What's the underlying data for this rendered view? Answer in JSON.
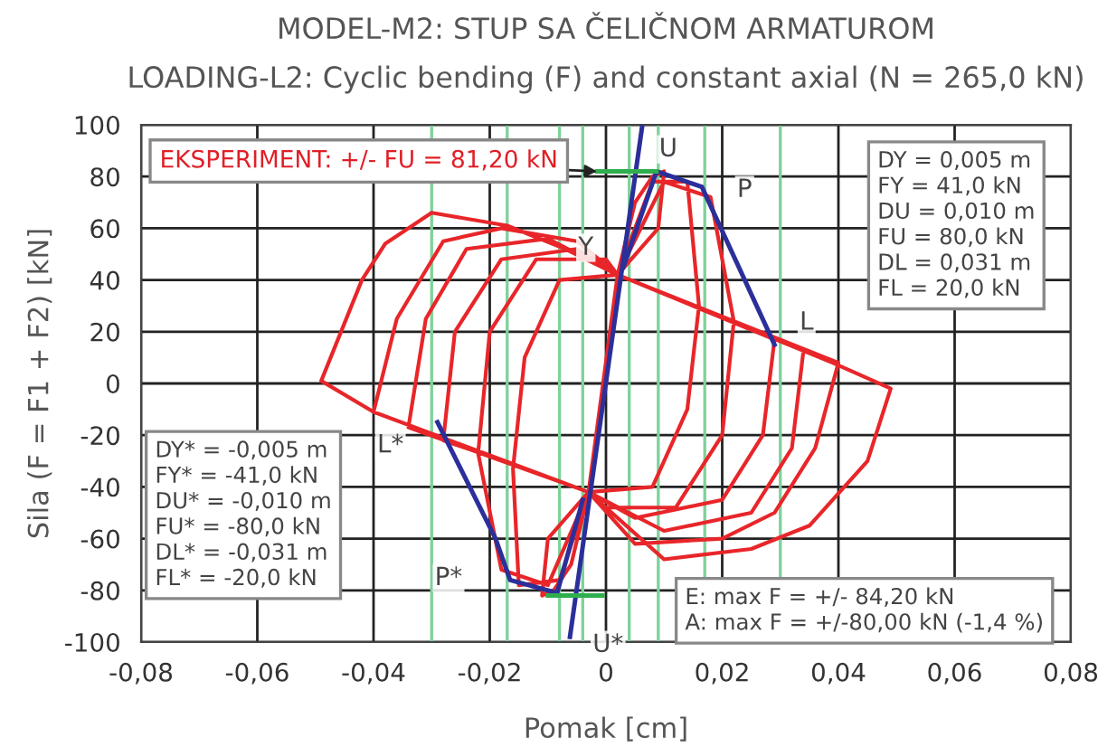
{
  "chart_data": {
    "type": "line",
    "title": "MODEL-M2: STUP SA ČELIČNOM ARMATUROM",
    "subtitle": "LOADING-L2: Cyclic bending (F) and constant axial (N = 265,0 kN)",
    "xlabel": "Pomak [cm]",
    "ylabel": "Sila (F = F1 + F2) [kN]",
    "xlim": [
      -0.08,
      0.08
    ],
    "ylim": [
      -100,
      100
    ],
    "xticks": [
      {
        "value": -0.08,
        "label": "-0,08"
      },
      {
        "value": -0.06,
        "label": "-0,06"
      },
      {
        "value": -0.04,
        "label": "-0,04"
      },
      {
        "value": -0.02,
        "label": "-0,02"
      },
      0,
      {
        "value": 0.02,
        "label": "0,02"
      },
      {
        "value": 0.04,
        "label": "0,04"
      },
      {
        "value": 0.06,
        "label": "0,06"
      },
      {
        "value": 0.08,
        "label": "0,08"
      }
    ],
    "yticks": [
      -100,
      -80,
      -60,
      -40,
      -20,
      0,
      20,
      40,
      60,
      80,
      100
    ],
    "grid": true,
    "marker": "none",
    "line_style": "solid",
    "series": [
      {
        "color": "#e8262a",
        "x": [
          0.0,
          0.002,
          0.005,
          0.008,
          0.01,
          0.009,
          0.002,
          -0.003,
          -0.006,
          -0.009,
          -0.011,
          -0.01,
          -0.003,
          0.002,
          0.008,
          0.014,
          0.016,
          0.014,
          0.008,
          -0.003,
          -0.008,
          -0.015,
          -0.016,
          -0.014,
          -0.008,
          0.002,
          0.01,
          0.018,
          0.022,
          0.02,
          0.012,
          0.0,
          -0.003,
          -0.01,
          -0.018,
          -0.022,
          -0.02,
          -0.012,
          0.0,
          0.002,
          0.015,
          0.029,
          0.027,
          0.02,
          0.005,
          -0.003,
          -0.015,
          -0.028,
          -0.026,
          -0.018,
          -0.005,
          0.002,
          0.034,
          0.032,
          0.025,
          0.01,
          -0.003,
          -0.034,
          -0.031,
          -0.024,
          -0.01,
          0.002,
          0.04,
          0.036,
          0.029,
          0.02,
          0.005,
          -0.003,
          -0.04,
          -0.036,
          -0.028,
          -0.018,
          -0.005,
          0.002,
          0.039,
          0.049,
          0.045,
          0.035,
          0.025,
          0.01,
          -0.003,
          -0.04,
          -0.049,
          -0.042,
          -0.038,
          -0.03,
          -0.017,
          -0.007,
          0.002
        ],
        "values": [
          0,
          42,
          70,
          80,
          82,
          60,
          42,
          -42,
          -70,
          -80,
          -82,
          -60,
          -42,
          42,
          78,
          78,
          30,
          -10,
          -40,
          -42,
          -76,
          -78,
          -33,
          10,
          40,
          42,
          78,
          72,
          24,
          -20,
          -48,
          -48,
          -42,
          -78,
          -72,
          -27,
          20,
          48,
          48,
          42,
          30,
          17,
          -20,
          -45,
          -52,
          -42,
          -32,
          -22,
          20,
          48,
          52,
          42,
          13,
          -25,
          -50,
          -57,
          -42,
          -17,
          25,
          52,
          56,
          42,
          8,
          -25,
          -50,
          -60,
          -62,
          -42,
          -11,
          25,
          55,
          60,
          55,
          42,
          8,
          -2,
          -30,
          -55,
          -64,
          -68,
          -42,
          -11,
          1,
          40,
          54,
          66,
          61,
          52,
          42
        ]
      },
      {
        "color": "#2b2f9a",
        "x": [
          -0.0062,
          0.0062
        ],
        "values": [
          -98,
          99
        ]
      },
      {
        "color": "#2b2f9a",
        "x": [
          0.003,
          0.0087,
          0.0165,
          0.029
        ],
        "values": [
          45,
          82,
          76,
          15
        ]
      },
      {
        "color": "#2b2f9a",
        "x": [
          -0.004,
          -0.0084,
          -0.0165,
          -0.019,
          -0.029
        ],
        "values": [
          -45,
          -81,
          -76,
          -60,
          -15
        ]
      },
      {
        "color": "#2fae4e",
        "x": [
          -0.0015,
          0.0087
        ],
        "values": [
          82,
          82
        ]
      },
      {
        "color": "#2fae4e",
        "x": [
          -0.01,
          -0.0006
        ],
        "values": [
          -82,
          -82
        ]
      }
    ],
    "ref_lines": [
      {
        "axis": "x",
        "value": -0.03,
        "color": "#7fd19a"
      },
      {
        "axis": "x",
        "value": -0.017,
        "color": "#7fd19a"
      },
      {
        "axis": "x",
        "value": -0.008,
        "color": "#7fd19a"
      },
      {
        "axis": "x",
        "value": -0.004,
        "color": "#7fd19a"
      },
      {
        "axis": "x",
        "value": 0.004,
        "color": "#7fd19a"
      },
      {
        "axis": "x",
        "value": 0.009,
        "color": "#7fd19a"
      },
      {
        "axis": "x",
        "value": 0.017,
        "color": "#7fd19a"
      },
      {
        "axis": "x",
        "value": 0.03,
        "color": "#7fd19a"
      }
    ],
    "annotations": [
      {
        "text": "EKSPERIMENT: +/- FU = 81,20 kN",
        "x": -0.0015,
        "y": 82
      },
      "DY = 0,005 m\nFY = 41,0 kN\nDU = 0,010 m\nFU = 80,0 kN\nDL = 0,031 m\nFL = 20,0 kN",
      "DY* = -0,005 m\nFY* = -41,0 kN\nDU* = -0,010 m\nFU* = -80,0 kN\nDL* = -0,031 m\nFL* = -20,0 kN",
      "E: max F = +/- 84,20 kN\nA: max F = +/-80,00 kN (-1,4 %)",
      {
        "text": "U",
        "x": 0.0087,
        "y": 82
      },
      {
        "text": "P",
        "x": 0.0165,
        "y": 76
      },
      {
        "text": "Y",
        "x": 0.003,
        "y": 42
      },
      {
        "text": "L",
        "x": 0.029,
        "y": 15
      },
      {
        "text": "L*",
        "x": -0.029,
        "y": -15
      },
      {
        "text": "P*",
        "x": -0.0165,
        "y": -76
      },
      {
        "text": "U*",
        "x": -0.0062,
        "y": -98
      }
    ]
  }
}
